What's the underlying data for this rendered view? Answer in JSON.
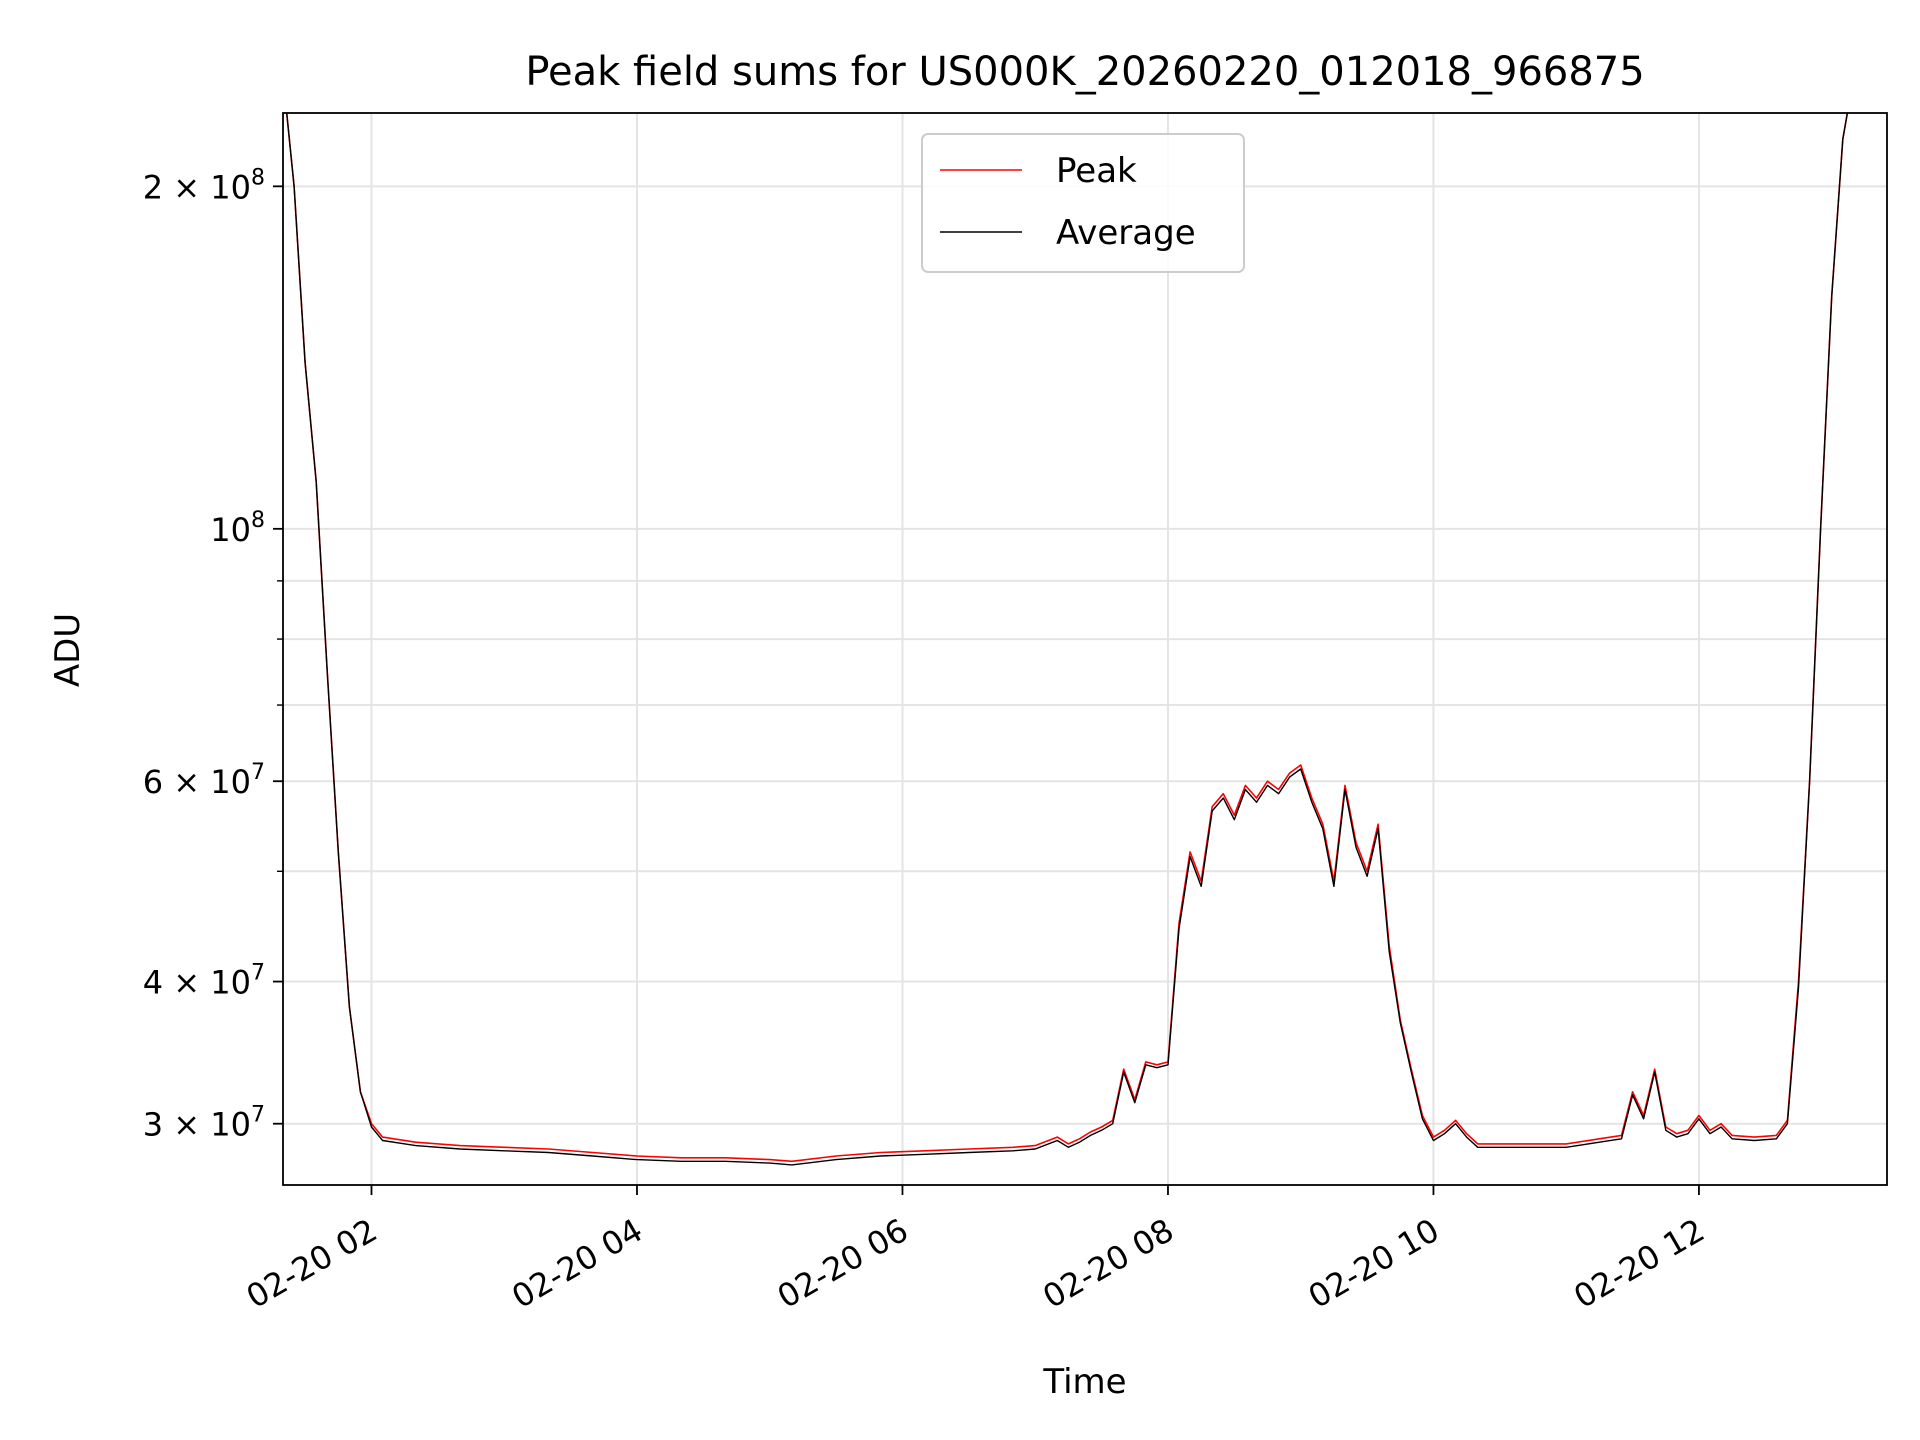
{
  "chart_data": {
    "type": "line",
    "title": "Peak field sums for US000K_20260220_012018_966875",
    "xlabel": "Time",
    "ylabel": "ADU",
    "xlim": [
      "2026-02-20 01:20",
      "2026-02-20 13:25"
    ],
    "ylim": [
      26500000,
      232000000
    ],
    "yscale": "log",
    "grid": true,
    "legend_position": "upper center",
    "x_ticks": [
      {
        "value": "2026-02-20 02:00",
        "label": "02-20 02"
      },
      {
        "value": "2026-02-20 04:00",
        "label": "02-20 04"
      },
      {
        "value": "2026-02-20 06:00",
        "label": "02-20 06"
      },
      {
        "value": "2026-02-20 08:00",
        "label": "02-20 08"
      },
      {
        "value": "2026-02-20 10:00",
        "label": "02-20 10"
      },
      {
        "value": "2026-02-20 12:00",
        "label": "02-20 12"
      }
    ],
    "y_ticks": [
      {
        "value": 30000000,
        "mant": "3",
        "exp": "7"
      },
      {
        "value": 40000000,
        "mant": "4",
        "exp": "7"
      },
      {
        "value": 60000000,
        "mant": "6",
        "exp": "7"
      },
      {
        "value": 100000000,
        "mant": "",
        "exp": "8"
      },
      {
        "value": 200000000,
        "mant": "2",
        "exp": "8"
      }
    ],
    "y_minor_ticks": [
      50000000,
      70000000,
      80000000,
      90000000
    ],
    "series": [
      {
        "name": "Peak",
        "color": "#ff0000",
        "x": [
          "2026-02-20 01:20",
          "2026-02-20 01:25",
          "2026-02-20 01:30",
          "2026-02-20 01:35",
          "2026-02-20 01:40",
          "2026-02-20 01:45",
          "2026-02-20 01:50",
          "2026-02-20 01:55",
          "2026-02-20 02:00",
          "2026-02-20 02:05",
          "2026-02-20 02:20",
          "2026-02-20 02:40",
          "2026-02-20 03:00",
          "2026-02-20 03:20",
          "2026-02-20 03:40",
          "2026-02-20 04:00",
          "2026-02-20 04:20",
          "2026-02-20 04:40",
          "2026-02-20 05:00",
          "2026-02-20 05:10",
          "2026-02-20 05:30",
          "2026-02-20 05:50",
          "2026-02-20 06:10",
          "2026-02-20 06:30",
          "2026-02-20 06:50",
          "2026-02-20 07:00",
          "2026-02-20 07:10",
          "2026-02-20 07:15",
          "2026-02-20 07:20",
          "2026-02-20 07:25",
          "2026-02-20 07:30",
          "2026-02-20 07:35",
          "2026-02-20 07:40",
          "2026-02-20 07:45",
          "2026-02-20 07:50",
          "2026-02-20 07:55",
          "2026-02-20 08:00",
          "2026-02-20 08:05",
          "2026-02-20 08:10",
          "2026-02-20 08:15",
          "2026-02-20 08:20",
          "2026-02-20 08:25",
          "2026-02-20 08:30",
          "2026-02-20 08:35",
          "2026-02-20 08:40",
          "2026-02-20 08:45",
          "2026-02-20 08:50",
          "2026-02-20 08:55",
          "2026-02-20 09:00",
          "2026-02-20 09:05",
          "2026-02-20 09:10",
          "2026-02-20 09:15",
          "2026-02-20 09:20",
          "2026-02-20 09:25",
          "2026-02-20 09:30",
          "2026-02-20 09:35",
          "2026-02-20 09:40",
          "2026-02-20 09:45",
          "2026-02-20 09:50",
          "2026-02-20 09:55",
          "2026-02-20 10:00",
          "2026-02-20 10:05",
          "2026-02-20 10:10",
          "2026-02-20 10:15",
          "2026-02-20 10:20",
          "2026-02-20 10:30",
          "2026-02-20 10:45",
          "2026-02-20 11:00",
          "2026-02-20 11:15",
          "2026-02-20 11:25",
          "2026-02-20 11:30",
          "2026-02-20 11:35",
          "2026-02-20 11:40",
          "2026-02-20 11:45",
          "2026-02-20 11:50",
          "2026-02-20 11:55",
          "2026-02-20 12:00",
          "2026-02-20 12:05",
          "2026-02-20 12:10",
          "2026-02-20 12:15",
          "2026-02-20 12:25",
          "2026-02-20 12:35",
          "2026-02-20 12:40",
          "2026-02-20 12:45",
          "2026-02-20 12:50",
          "2026-02-20 12:55",
          "2026-02-20 13:00",
          "2026-02-20 13:05",
          "2026-02-20 13:10",
          "2026-02-20 13:15"
        ],
        "values": [
          250000000,
          200000000,
          140000000,
          110000000,
          75000000,
          52000000,
          38000000,
          32000000,
          30000000,
          29200000,
          28900000,
          28700000,
          28600000,
          28500000,
          28300000,
          28100000,
          28000000,
          28000000,
          27900000,
          27800000,
          28100000,
          28300000,
          28400000,
          28500000,
          28600000,
          28700000,
          29200000,
          28800000,
          29100000,
          29500000,
          29800000,
          30200000,
          33500000,
          31500000,
          34000000,
          33800000,
          34000000,
          45000000,
          52000000,
          49000000,
          57000000,
          58500000,
          56000000,
          59500000,
          58000000,
          60000000,
          59000000,
          61000000,
          62000000,
          58000000,
          55000000,
          49000000,
          59500000,
          53000000,
          50000000,
          55000000,
          43000000,
          37000000,
          33500000,
          30500000,
          29200000,
          29600000,
          30200000,
          29400000,
          28800000,
          28800000,
          28800000,
          28800000,
          29100000,
          29300000,
          32000000,
          30500000,
          33500000,
          29800000,
          29400000,
          29600000,
          30500000,
          29600000,
          30000000,
          29300000,
          29200000,
          29300000,
          30200000,
          40000000,
          60000000,
          100000000,
          160000000,
          220000000,
          250000000,
          250000000
        ]
      },
      {
        "name": "Average",
        "color": "#000000",
        "x": [
          "2026-02-20 01:20",
          "2026-02-20 01:25",
          "2026-02-20 01:30",
          "2026-02-20 01:35",
          "2026-02-20 01:40",
          "2026-02-20 01:45",
          "2026-02-20 01:50",
          "2026-02-20 01:55",
          "2026-02-20 02:00",
          "2026-02-20 02:05",
          "2026-02-20 02:20",
          "2026-02-20 02:40",
          "2026-02-20 03:00",
          "2026-02-20 03:20",
          "2026-02-20 03:40",
          "2026-02-20 04:00",
          "2026-02-20 04:20",
          "2026-02-20 04:40",
          "2026-02-20 05:00",
          "2026-02-20 05:10",
          "2026-02-20 05:30",
          "2026-02-20 05:50",
          "2026-02-20 06:10",
          "2026-02-20 06:30",
          "2026-02-20 06:50",
          "2026-02-20 07:00",
          "2026-02-20 07:10",
          "2026-02-20 07:15",
          "2026-02-20 07:20",
          "2026-02-20 07:25",
          "2026-02-20 07:30",
          "2026-02-20 07:35",
          "2026-02-20 07:40",
          "2026-02-20 07:45",
          "2026-02-20 07:50",
          "2026-02-20 07:55",
          "2026-02-20 08:00",
          "2026-02-20 08:05",
          "2026-02-20 08:10",
          "2026-02-20 08:15",
          "2026-02-20 08:20",
          "2026-02-20 08:25",
          "2026-02-20 08:30",
          "2026-02-20 08:35",
          "2026-02-20 08:40",
          "2026-02-20 08:45",
          "2026-02-20 08:50",
          "2026-02-20 08:55",
          "2026-02-20 09:00",
          "2026-02-20 09:05",
          "2026-02-20 09:10",
          "2026-02-20 09:15",
          "2026-02-20 09:20",
          "2026-02-20 09:25",
          "2026-02-20 09:30",
          "2026-02-20 09:35",
          "2026-02-20 09:40",
          "2026-02-20 09:45",
          "2026-02-20 09:50",
          "2026-02-20 09:55",
          "2026-02-20 10:00",
          "2026-02-20 10:05",
          "2026-02-20 10:10",
          "2026-02-20 10:15",
          "2026-02-20 10:20",
          "2026-02-20 10:30",
          "2026-02-20 10:45",
          "2026-02-20 11:00",
          "2026-02-20 11:15",
          "2026-02-20 11:25",
          "2026-02-20 11:30",
          "2026-02-20 11:35",
          "2026-02-20 11:40",
          "2026-02-20 11:45",
          "2026-02-20 11:50",
          "2026-02-20 11:55",
          "2026-02-20 12:00",
          "2026-02-20 12:05",
          "2026-02-20 12:10",
          "2026-02-20 12:15",
          "2026-02-20 12:25",
          "2026-02-20 12:35",
          "2026-02-20 12:40",
          "2026-02-20 12:45",
          "2026-02-20 12:50",
          "2026-02-20 12:55",
          "2026-02-20 13:00",
          "2026-02-20 13:05",
          "2026-02-20 13:10",
          "2026-02-20 13:15"
        ],
        "values": [
          250000000,
          200000000,
          140000000,
          110000000,
          75000000,
          52000000,
          38000000,
          32000000,
          29800000,
          29000000,
          28700000,
          28500000,
          28400000,
          28300000,
          28100000,
          27900000,
          27800000,
          27800000,
          27700000,
          27600000,
          27900000,
          28100000,
          28200000,
          28300000,
          28400000,
          28500000,
          29000000,
          28600000,
          28900000,
          29300000,
          29600000,
          30000000,
          33300000,
          31300000,
          33800000,
          33600000,
          33800000,
          44500000,
          51500000,
          48500000,
          56500000,
          58000000,
          55500000,
          59000000,
          57500000,
          59500000,
          58500000,
          60500000,
          61500000,
          57500000,
          54500000,
          48500000,
          59000000,
          52500000,
          49500000,
          54500000,
          42500000,
          36800000,
          33300000,
          30300000,
          29000000,
          29400000,
          30000000,
          29200000,
          28600000,
          28600000,
          28600000,
          28600000,
          28900000,
          29100000,
          31800000,
          30300000,
          33300000,
          29600000,
          29200000,
          29400000,
          30300000,
          29400000,
          29800000,
          29100000,
          29000000,
          29100000,
          30000000,
          39500000,
          60000000,
          100000000,
          160000000,
          220000000,
          250000000,
          250000000
        ]
      }
    ]
  }
}
